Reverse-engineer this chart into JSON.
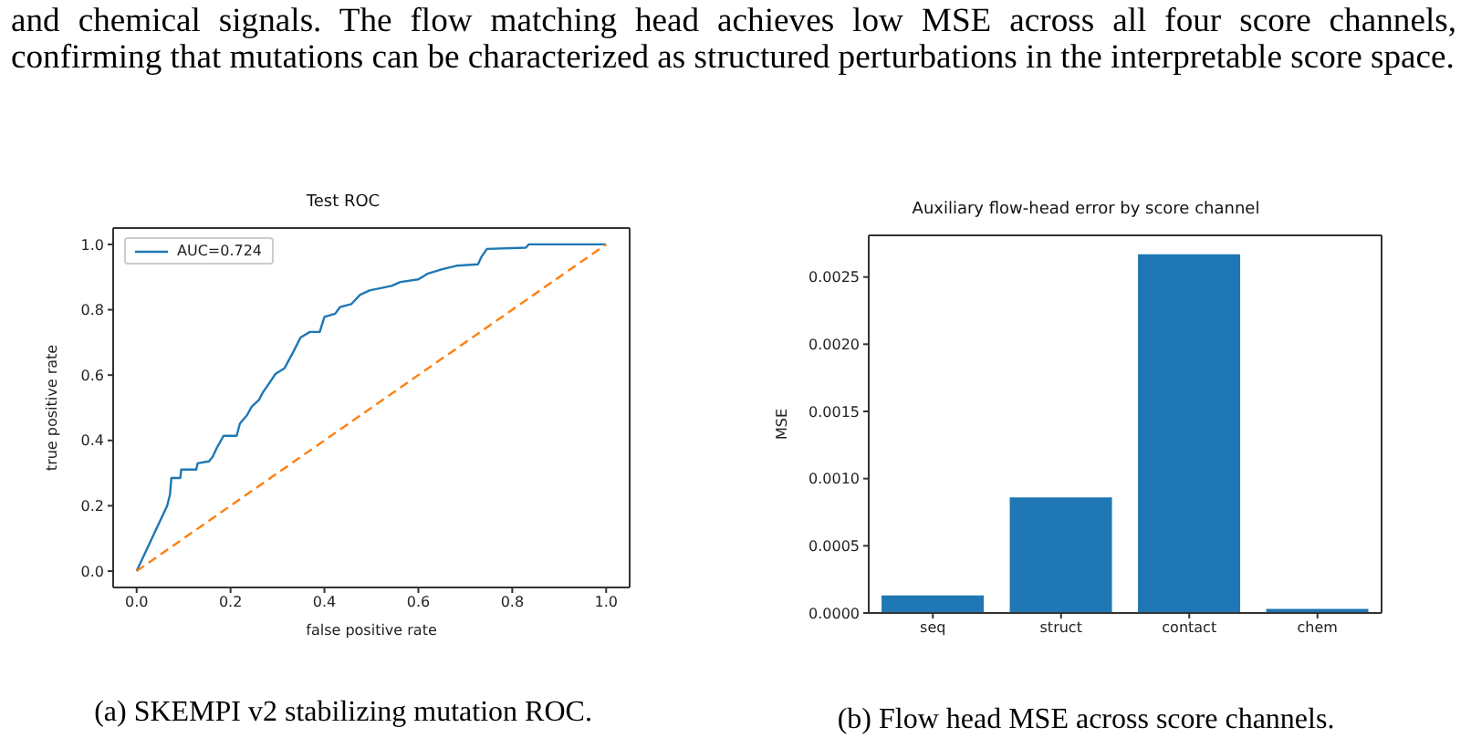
{
  "chart_data": [
    {
      "type": "line",
      "title": "Test ROC",
      "xlabel": "false positive rate",
      "ylabel": "true positive rate",
      "xlim": [
        -0.05,
        1.05
      ],
      "ylim": [
        -0.05,
        1.05
      ],
      "xticks": [
        {
          "value": 0,
          "label": "0.0"
        },
        {
          "value": 0.2,
          "label": "0.2"
        },
        {
          "value": 0.4,
          "label": "0.4"
        },
        {
          "value": 0.6,
          "label": "0.6"
        },
        {
          "value": 0.8,
          "label": "0.8"
        },
        {
          "value": 1,
          "label": "1.0"
        }
      ],
      "yticks": [
        {
          "value": 0,
          "label": "0.0"
        },
        {
          "value": 0.2,
          "label": "0.2"
        },
        {
          "value": 0.4,
          "label": "0.4"
        },
        {
          "value": 0.6,
          "label": "0.6"
        },
        {
          "value": 0.8,
          "label": "0.8"
        },
        {
          "value": 1,
          "label": "1.0"
        }
      ],
      "grid": false,
      "legend": "top left",
      "marker": "none",
      "series": [
        {
          "name": "AUC=0.724",
          "color": "#1f77b4",
          "line_style": "solid",
          "x": [
            0,
            0.065,
            0.071,
            0.074,
            0.093,
            0.095,
            0.127,
            0.13,
            0.154,
            0.162,
            0.17,
            0.185,
            0.213,
            0.22,
            0.235,
            0.245,
            0.261,
            0.268,
            0.28,
            0.296,
            0.315,
            0.334,
            0.349,
            0.369,
            0.39,
            0.4,
            0.423,
            0.433,
            0.457,
            0.476,
            0.496,
            0.543,
            0.562,
            0.6,
            0.619,
            0.651,
            0.683,
            0.727,
            0.734,
            0.746,
            0.829,
            0.835,
            1
          ],
          "values": [
            0,
            0.2,
            0.234,
            0.285,
            0.285,
            0.311,
            0.311,
            0.33,
            0.336,
            0.35,
            0.375,
            0.414,
            0.414,
            0.452,
            0.477,
            0.503,
            0.525,
            0.545,
            0.57,
            0.604,
            0.621,
            0.672,
            0.715,
            0.732,
            0.732,
            0.778,
            0.788,
            0.808,
            0.817,
            0.846,
            0.859,
            0.873,
            0.885,
            0.893,
            0.91,
            0.924,
            0.935,
            0.939,
            0.961,
            0.986,
            0.99,
            1,
            1
          ]
        },
        {
          "color": "#ff7f0e",
          "line_style": "dashed",
          "x": [
            0,
            1
          ],
          "values": [
            0,
            1
          ]
        }
      ],
      "annotations": [
        "and chemical signals. The flow matching head achieves low MSE across all four score channels, confirming that mutations can be characterized as structured perturbations in the interpretable score space.",
        "(a) SKEMPI v2 stabilizing mutation ROC."
      ]
    },
    {
      "type": "bar",
      "title": "Auxiliary flow-head error by score channel",
      "ylabel": "MSE",
      "categories": [
        "seq",
        "struct",
        "contact",
        "chem"
      ],
      "values": [
        0.00013,
        0.00086,
        0.00267,
        3e-05
      ],
      "color": "#1f77b4",
      "ylim": [
        0,
        0.00281
      ],
      "yticks": [
        {
          "value": 0,
          "label": "0.0000"
        },
        {
          "value": 0.0005,
          "label": "0.0005"
        },
        {
          "value": 0.001,
          "label": "0.0010"
        },
        {
          "value": 0.0015,
          "label": "0.0015"
        },
        {
          "value": 0.002,
          "label": "0.0020"
        },
        {
          "value": 0.0025,
          "label": "0.0025"
        }
      ],
      "grid": false,
      "annotations": [
        "(b) Flow head MSE across score channels."
      ]
    }
  ]
}
